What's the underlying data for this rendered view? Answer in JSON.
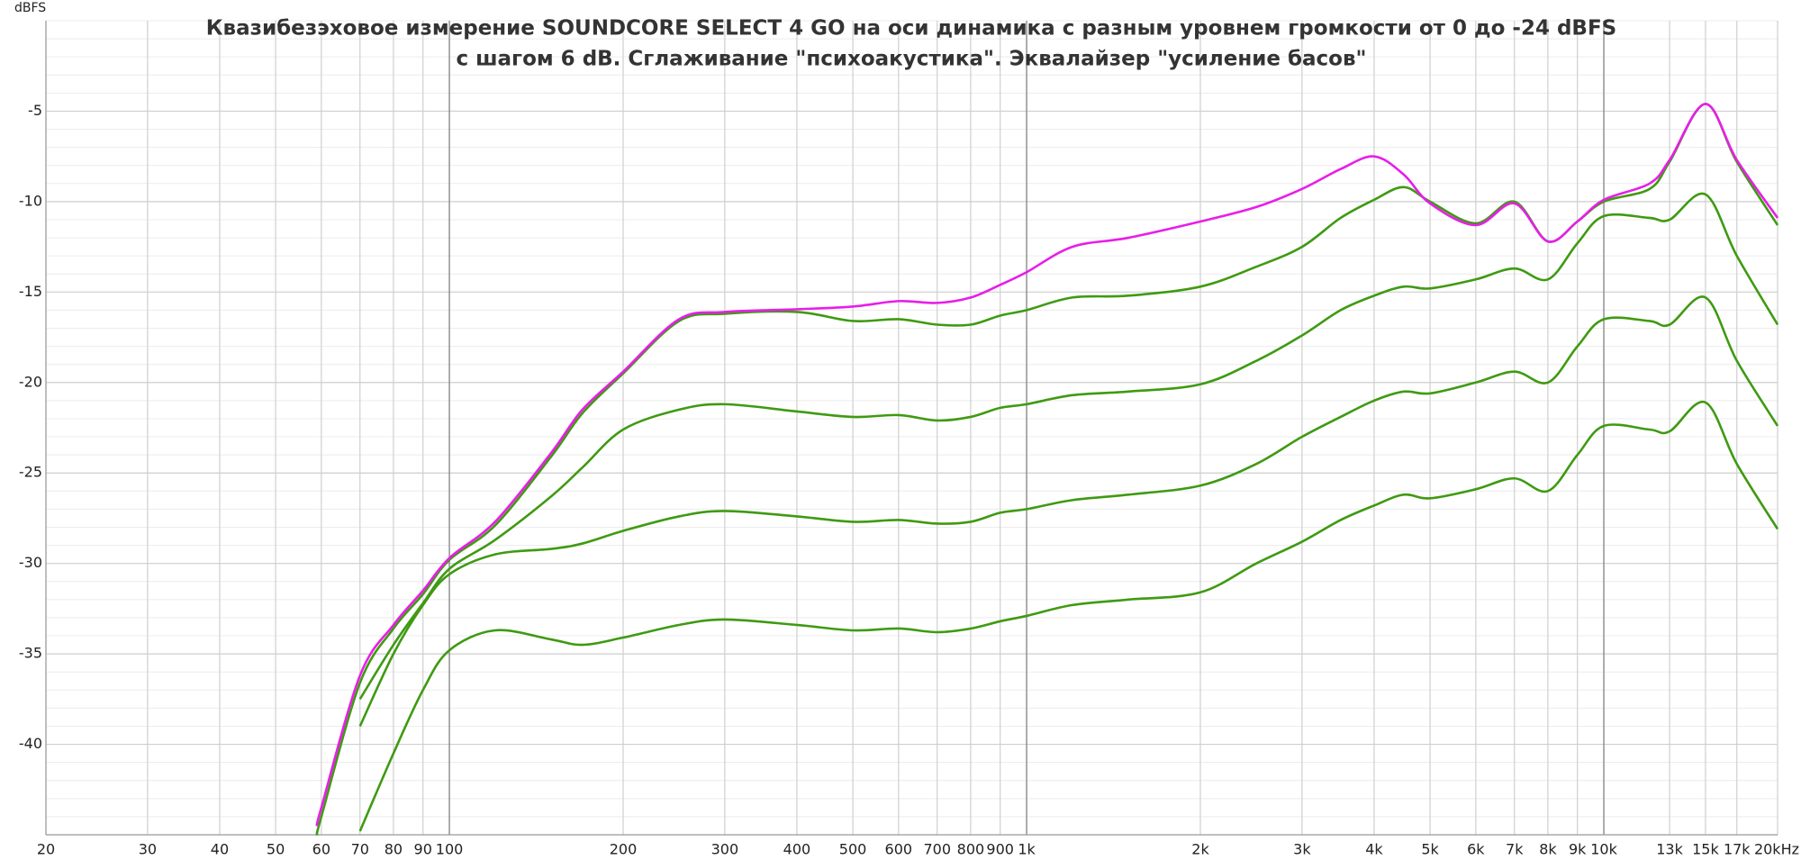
{
  "chart_data": {
    "type": "line",
    "title": [
      "Квазибезэховое измерение SOUNDCORE SELECT 4 GO на оси динамика с разным уровнем громкости от 0 до -24 dBFS",
      "с шагом 6 dB. Сглаживание \"психоакустика\". Эквалайзер \"усиление басов\""
    ],
    "y_label": "dBFS",
    "log_x": true,
    "grid": true,
    "x": [
      59,
      60,
      70,
      80,
      90,
      100,
      120,
      150,
      170,
      200,
      250,
      300,
      400,
      500,
      600,
      700,
      800,
      900,
      1000,
      1200,
      1500,
      2000,
      2500,
      3000,
      3500,
      4000,
      4500,
      5000,
      6000,
      7000,
      8000,
      9000,
      10000,
      12000,
      13000,
      15000,
      17000,
      20000
    ],
    "series": [
      {
        "color": "#e81ee8",
        "values": [
          -44.5,
          -43.5,
          -36.2,
          -33.4,
          -31.5,
          -29.7,
          -27.7,
          -23.9,
          -21.5,
          -19.4,
          -16.5,
          -16.1,
          -15.95,
          -15.8,
          -15.5,
          -15.6,
          -15.3,
          -14.6,
          -13.9,
          -12.5,
          -12.0,
          -11.1,
          -10.3,
          -9.3,
          -8.2,
          -7.5,
          -8.5,
          -10.1,
          -11.3,
          -10.1,
          -12.2,
          -11.1,
          -9.9,
          -9.0,
          -7.7,
          -4.6,
          -7.7,
          -10.9
        ]
      },
      {
        "color": "#3f9a12",
        "values": [
          -45.0,
          -44.0,
          -36.6,
          -33.6,
          -31.7,
          -29.8,
          -27.9,
          -24.1,
          -21.7,
          -19.5,
          -16.6,
          -16.2,
          -16.1,
          -16.6,
          -16.5,
          -16.8,
          -16.8,
          -16.3,
          -16.0,
          -15.3,
          -15.2,
          -14.7,
          -13.6,
          -12.5,
          -10.9,
          -9.9,
          -9.2,
          -10.0,
          -11.2,
          -10.0,
          -12.2,
          -11.1,
          -10.0,
          -9.3,
          -7.8,
          -4.6,
          -7.8,
          -11.3
        ]
      },
      {
        "color": "#3f9a12",
        "values": [
          null,
          null,
          -37.5,
          -34.5,
          -32.2,
          -30.3,
          -28.7,
          -26.3,
          -24.7,
          -22.6,
          -21.5,
          -21.2,
          -21.6,
          -21.9,
          -21.8,
          -22.1,
          -21.9,
          -21.4,
          -21.2,
          -20.7,
          -20.5,
          -20.1,
          -18.8,
          -17.4,
          -16.0,
          -15.2,
          -14.7,
          -14.8,
          -14.3,
          -13.7,
          -14.3,
          -12.3,
          -10.8,
          -10.9,
          -11.0,
          -9.6,
          -13.0,
          -16.8
        ]
      },
      {
        "color": "#3f9a12",
        "values": [
          null,
          null,
          -39.0,
          -35.0,
          -32.3,
          -30.6,
          -29.5,
          -29.2,
          -28.9,
          -28.2,
          -27.4,
          -27.1,
          -27.4,
          -27.7,
          -27.6,
          -27.8,
          -27.7,
          -27.2,
          -27.0,
          -26.5,
          -26.2,
          -25.7,
          -24.5,
          -23.0,
          -21.9,
          -21.0,
          -20.5,
          -20.6,
          -20.0,
          -19.4,
          -20.0,
          -18.0,
          -16.5,
          -16.6,
          -16.8,
          -15.3,
          -18.8,
          -22.4
        ]
      },
      {
        "color": "#3f9a12",
        "values": [
          null,
          null,
          -44.8,
          -40.5,
          -37.0,
          -34.8,
          -33.7,
          -34.2,
          -34.5,
          -34.1,
          -33.4,
          -33.1,
          -33.4,
          -33.7,
          -33.6,
          -33.8,
          -33.6,
          -33.2,
          -32.9,
          -32.3,
          -32.0,
          -31.6,
          -30.0,
          -28.8,
          -27.6,
          -26.8,
          -26.2,
          -26.4,
          -25.9,
          -25.3,
          -26.0,
          -24.0,
          -22.4,
          -22.6,
          -22.7,
          -21.1,
          -24.5,
          -28.1
        ]
      }
    ],
    "xlim": [
      20,
      20000
    ],
    "xticks": [
      20,
      30,
      40,
      50,
      60,
      70,
      80,
      90,
      100,
      200,
      300,
      400,
      500,
      600,
      700,
      800,
      900,
      {
        "value": 1000,
        "label": "1k"
      },
      {
        "value": 2000,
        "label": "2k"
      },
      {
        "value": 3000,
        "label": "3k"
      },
      {
        "value": 4000,
        "label": "4k"
      },
      {
        "value": 5000,
        "label": "5k"
      },
      {
        "value": 6000,
        "label": "6k"
      },
      {
        "value": 7000,
        "label": "7k"
      },
      {
        "value": 8000,
        "label": "8k"
      },
      {
        "value": 9000,
        "label": "9k"
      },
      {
        "value": 10000,
        "label": "10k"
      },
      {
        "value": 13000,
        "label": "13k"
      },
      {
        "value": 15000,
        "label": "15k"
      },
      {
        "value": 17000,
        "label": "17k"
      },
      {
        "value": 20000,
        "label": "20kHz"
      }
    ],
    "ylim": [
      -45,
      0
    ],
    "yticks": [
      -5,
      -10,
      -15,
      -20,
      -25,
      -30,
      -35,
      -40
    ]
  }
}
